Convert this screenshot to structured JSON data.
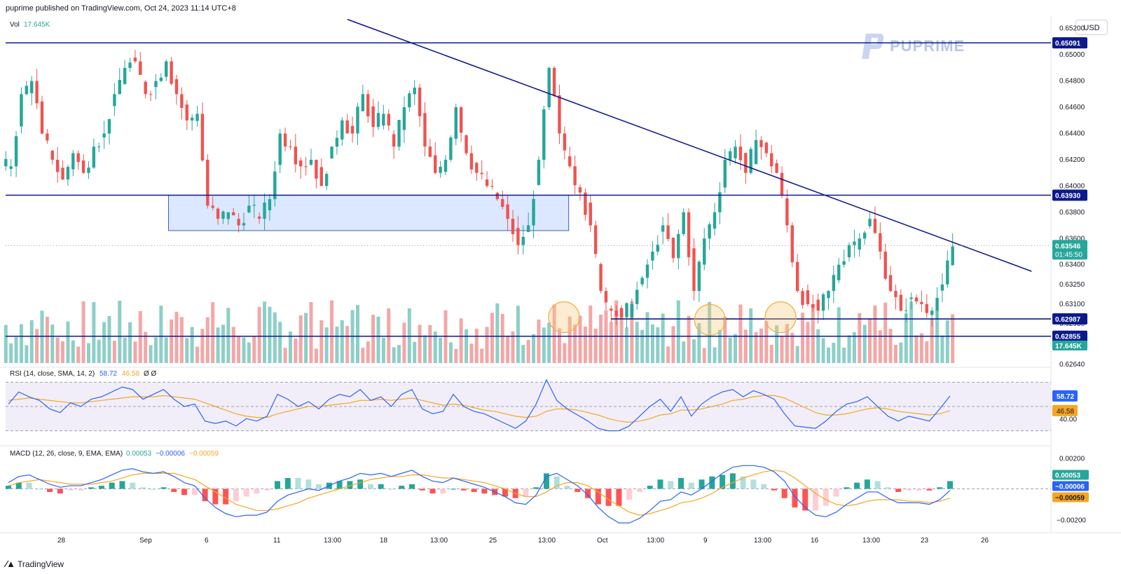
{
  "header": {
    "published": "puprime published on TradingView.com, Oct 24, 2023 11:14 UTC+8"
  },
  "currency_button": "USD",
  "brand": {
    "name": "PUPRIME"
  },
  "footer": {
    "logo_text": "TradingView"
  },
  "colors": {
    "up": "#26a69a",
    "down": "#ef5350",
    "up_vol": "#8ccfc8",
    "down_vol": "#f4a6a6",
    "line": "#0d1a8c",
    "rsi": "#2962ff",
    "rsi_ma": "#f5a623",
    "macd": "#2962ff",
    "signal": "#f5a623",
    "zone": "#cfe0ff"
  },
  "chart_data": {
    "type": "candlestick",
    "symbol_context": "Vol 17.645K",
    "price_scale": {
      "ticks": [
        "0.65200",
        "0.65000",
        "0.64800",
        "0.64600",
        "0.64400",
        "0.64200",
        "0.64000",
        "0.63800",
        "0.63600",
        "0.63400",
        "0.63250",
        "0.63100",
        "0.62950",
        "0.62640"
      ],
      "ylim": [
        0.6264,
        0.653
      ]
    },
    "levels": [
      {
        "value": 0.65091,
        "label": "0.65091"
      },
      {
        "value": 0.6393,
        "label": "0.63930"
      },
      {
        "value": 0.62987,
        "label": "0.62987"
      },
      {
        "value": 0.62855,
        "label": "0.62855"
      }
    ],
    "current_price": {
      "value": 0.63546,
      "label": "0.63546",
      "countdown": "01:45:50"
    },
    "volume_label": {
      "value": "17.645K"
    },
    "x_ticks": [
      "28",
      "Sep",
      "6",
      "11",
      "13:00",
      "18",
      "13:00",
      "25",
      "13:00",
      "Oct",
      "13:00",
      "9",
      "13:00",
      "16",
      "13:00",
      "23",
      "26"
    ],
    "trendline": {
      "from": {
        "bar": 0.36,
        "price": 0.6527
      },
      "to": {
        "bar": 0.975,
        "price": 0.6335
      }
    },
    "zone": {
      "from_bar": 0.17,
      "to_bar": 0.595,
      "price_top": 0.6393,
      "price_bottom": 0.6366
    },
    "highlight_circles": [
      {
        "bar": 0.59,
        "price": 0.63
      },
      {
        "bar": 0.745,
        "price": 0.6298
      },
      {
        "bar": 0.82,
        "price": 0.63
      }
    ],
    "close_path": [
      0.6415,
      0.647,
      0.648,
      0.644,
      0.642,
      0.6405,
      0.6425,
      0.641,
      0.643,
      0.644,
      0.647,
      0.649,
      0.6495,
      0.647,
      0.648,
      0.6495,
      0.647,
      0.645,
      0.6455,
      0.6385,
      0.6375,
      0.638,
      0.637,
      0.6385,
      0.6375,
      0.639,
      0.644,
      0.643,
      0.6415,
      0.642,
      0.64,
      0.643,
      0.645,
      0.644,
      0.647,
      0.6445,
      0.6455,
      0.643,
      0.646,
      0.6475,
      0.643,
      0.641,
      0.642,
      0.646,
      0.6425,
      0.641,
      0.64,
      0.639,
      0.6375,
      0.6355,
      0.637,
      0.642,
      0.649,
      0.644,
      0.6415,
      0.6395,
      0.637,
      0.632,
      0.6305,
      0.63,
      0.631,
      0.633,
      0.635,
      0.637,
      0.6345,
      0.638,
      0.632,
      0.636,
      0.638,
      0.642,
      0.643,
      0.641,
      0.6435,
      0.6425,
      0.641,
      0.637,
      0.632,
      0.631,
      0.6305,
      0.632,
      0.634,
      0.6355,
      0.636,
      0.6375,
      0.635,
      0.632,
      0.6305,
      0.6315,
      0.631,
      0.6305,
      0.6325,
      0.6354
    ],
    "rsi": {
      "title": "RSI (14, close, SMA, 14, 2)",
      "value": "58.72",
      "ma_value": "46.58",
      "extra": "Ø Ø",
      "bands": [
        70,
        50,
        30
      ],
      "scale_label": "40.00",
      "ylim": [
        20,
        80
      ],
      "series": [
        {
          "name": "RSI",
          "values": [
            52,
            62,
            58,
            55,
            48,
            45,
            53,
            50,
            56,
            58,
            62,
            66,
            64,
            56,
            60,
            64,
            56,
            50,
            52,
            38,
            36,
            38,
            34,
            40,
            38,
            42,
            60,
            56,
            50,
            54,
            48,
            56,
            60,
            58,
            64,
            55,
            58,
            50,
            60,
            64,
            48,
            44,
            46,
            60,
            50,
            46,
            44,
            40,
            36,
            32,
            38,
            52,
            72,
            55,
            48,
            43,
            38,
            32,
            30,
            30,
            34,
            42,
            50,
            56,
            46,
            58,
            42,
            52,
            58,
            62,
            64,
            58,
            63,
            60,
            56,
            44,
            34,
            33,
            32,
            38,
            46,
            52,
            54,
            58,
            50,
            42,
            38,
            42,
            40,
            38,
            48,
            58.72
          ]
        },
        {
          "name": "SMA",
          "values": [
            55,
            56,
            57,
            56,
            55,
            54,
            53,
            53,
            54,
            55,
            56,
            57,
            58,
            58,
            58,
            59,
            58,
            57,
            56,
            53,
            50,
            47,
            44,
            42,
            41,
            41,
            44,
            46,
            48,
            50,
            50,
            51,
            52,
            53,
            55,
            55,
            56,
            55,
            56,
            57,
            55,
            53,
            51,
            52,
            51,
            49,
            47,
            46,
            44,
            42,
            41,
            42,
            46,
            48,
            48,
            47,
            45,
            43,
            40,
            38,
            37,
            38,
            40,
            43,
            44,
            47,
            47,
            48,
            50,
            52,
            55,
            56,
            58,
            59,
            59,
            57,
            53,
            49,
            45,
            43,
            43,
            44,
            46,
            48,
            49,
            48,
            46,
            45,
            44,
            43,
            44,
            46.58
          ]
        }
      ]
    },
    "macd": {
      "title": "MACD (12, 26, close, 9, EMA, EMA)",
      "hist_value": "0.00053",
      "macd_value": "−0.00006",
      "signal_value": "−0.00059",
      "scale_labels": [
        "0.00200",
        "−0.00200"
      ],
      "ylim": [
        -0.0026,
        0.0026
      ],
      "series": [
        {
          "name": "MACD",
          "values": [
            0.0004,
            0.0008,
            0.0009,
            0.0006,
            0.0003,
            0.0001,
            0.0002,
            0.0002,
            0.0004,
            0.0006,
            0.0009,
            0.0012,
            0.0013,
            0.0011,
            0.001,
            0.0011,
            0.0008,
            0.0004,
            0.0002,
            -0.0006,
            -0.0012,
            -0.0016,
            -0.0018,
            -0.0017,
            -0.0017,
            -0.0015,
            -0.0008,
            -0.0004,
            -0.0002,
            0.0,
            -0.0001,
            0.0002,
            0.0005,
            0.0007,
            0.001,
            0.0009,
            0.001,
            0.0008,
            0.001,
            0.0012,
            0.0008,
            0.0005,
            0.0004,
            0.0007,
            0.0005,
            0.0003,
            0.0001,
            -0.0002,
            -0.0005,
            -0.0009,
            -0.001,
            -0.0004,
            0.0008,
            0.001,
            0.0006,
            0.0002,
            -0.0004,
            -0.0012,
            -0.0018,
            -0.0022,
            -0.0022,
            -0.0019,
            -0.0014,
            -0.0008,
            -0.0007,
            -0.0002,
            -0.0004,
            0.0,
            0.0005,
            0.001,
            0.0014,
            0.0015,
            0.0015,
            0.0014,
            0.0011,
            0.0005,
            -0.0005,
            -0.0012,
            -0.0017,
            -0.0018,
            -0.0015,
            -0.001,
            -0.0006,
            -0.0002,
            -0.0002,
            -0.0006,
            -0.0009,
            -0.0009,
            -0.0009,
            -0.001,
            -0.0007,
            -0.0001
          ]
        },
        {
          "name": "Signal",
          "values": [
            0.0002,
            0.0004,
            0.0005,
            0.0006,
            0.0005,
            0.0004,
            0.0003,
            0.0003,
            0.0003,
            0.0004,
            0.0005,
            0.0007,
            0.0009,
            0.001,
            0.001,
            0.001,
            0.001,
            0.0008,
            0.0006,
            0.0002,
            -0.0002,
            -0.0006,
            -0.001,
            -0.0012,
            -0.0014,
            -0.0014,
            -0.0013,
            -0.0011,
            -0.0009,
            -0.0006,
            -0.0004,
            -0.0002,
            0.0,
            0.0002,
            0.0004,
            0.0006,
            0.0007,
            0.0008,
            0.0008,
            0.0009,
            0.0009,
            0.0008,
            0.0007,
            0.0007,
            0.0006,
            0.0005,
            0.0004,
            0.0002,
            0.0,
            -0.0003,
            -0.0005,
            -0.0005,
            -0.0002,
            0.0002,
            0.0004,
            0.0004,
            0.0002,
            -0.0002,
            -0.0007,
            -0.0011,
            -0.0015,
            -0.0017,
            -0.0016,
            -0.0014,
            -0.0012,
            -0.0009,
            -0.0008,
            -0.0006,
            -0.0003,
            0.0001,
            0.0004,
            0.0007,
            0.0009,
            0.0011,
            0.0012,
            0.0011,
            0.0007,
            0.0002,
            -0.0003,
            -0.0007,
            -0.001,
            -0.0011,
            -0.001,
            -0.0008,
            -0.0007,
            -0.0007,
            -0.0007,
            -0.0008,
            -0.0008,
            -0.0009,
            -0.0008,
            -0.0006
          ]
        }
      ]
    }
  }
}
